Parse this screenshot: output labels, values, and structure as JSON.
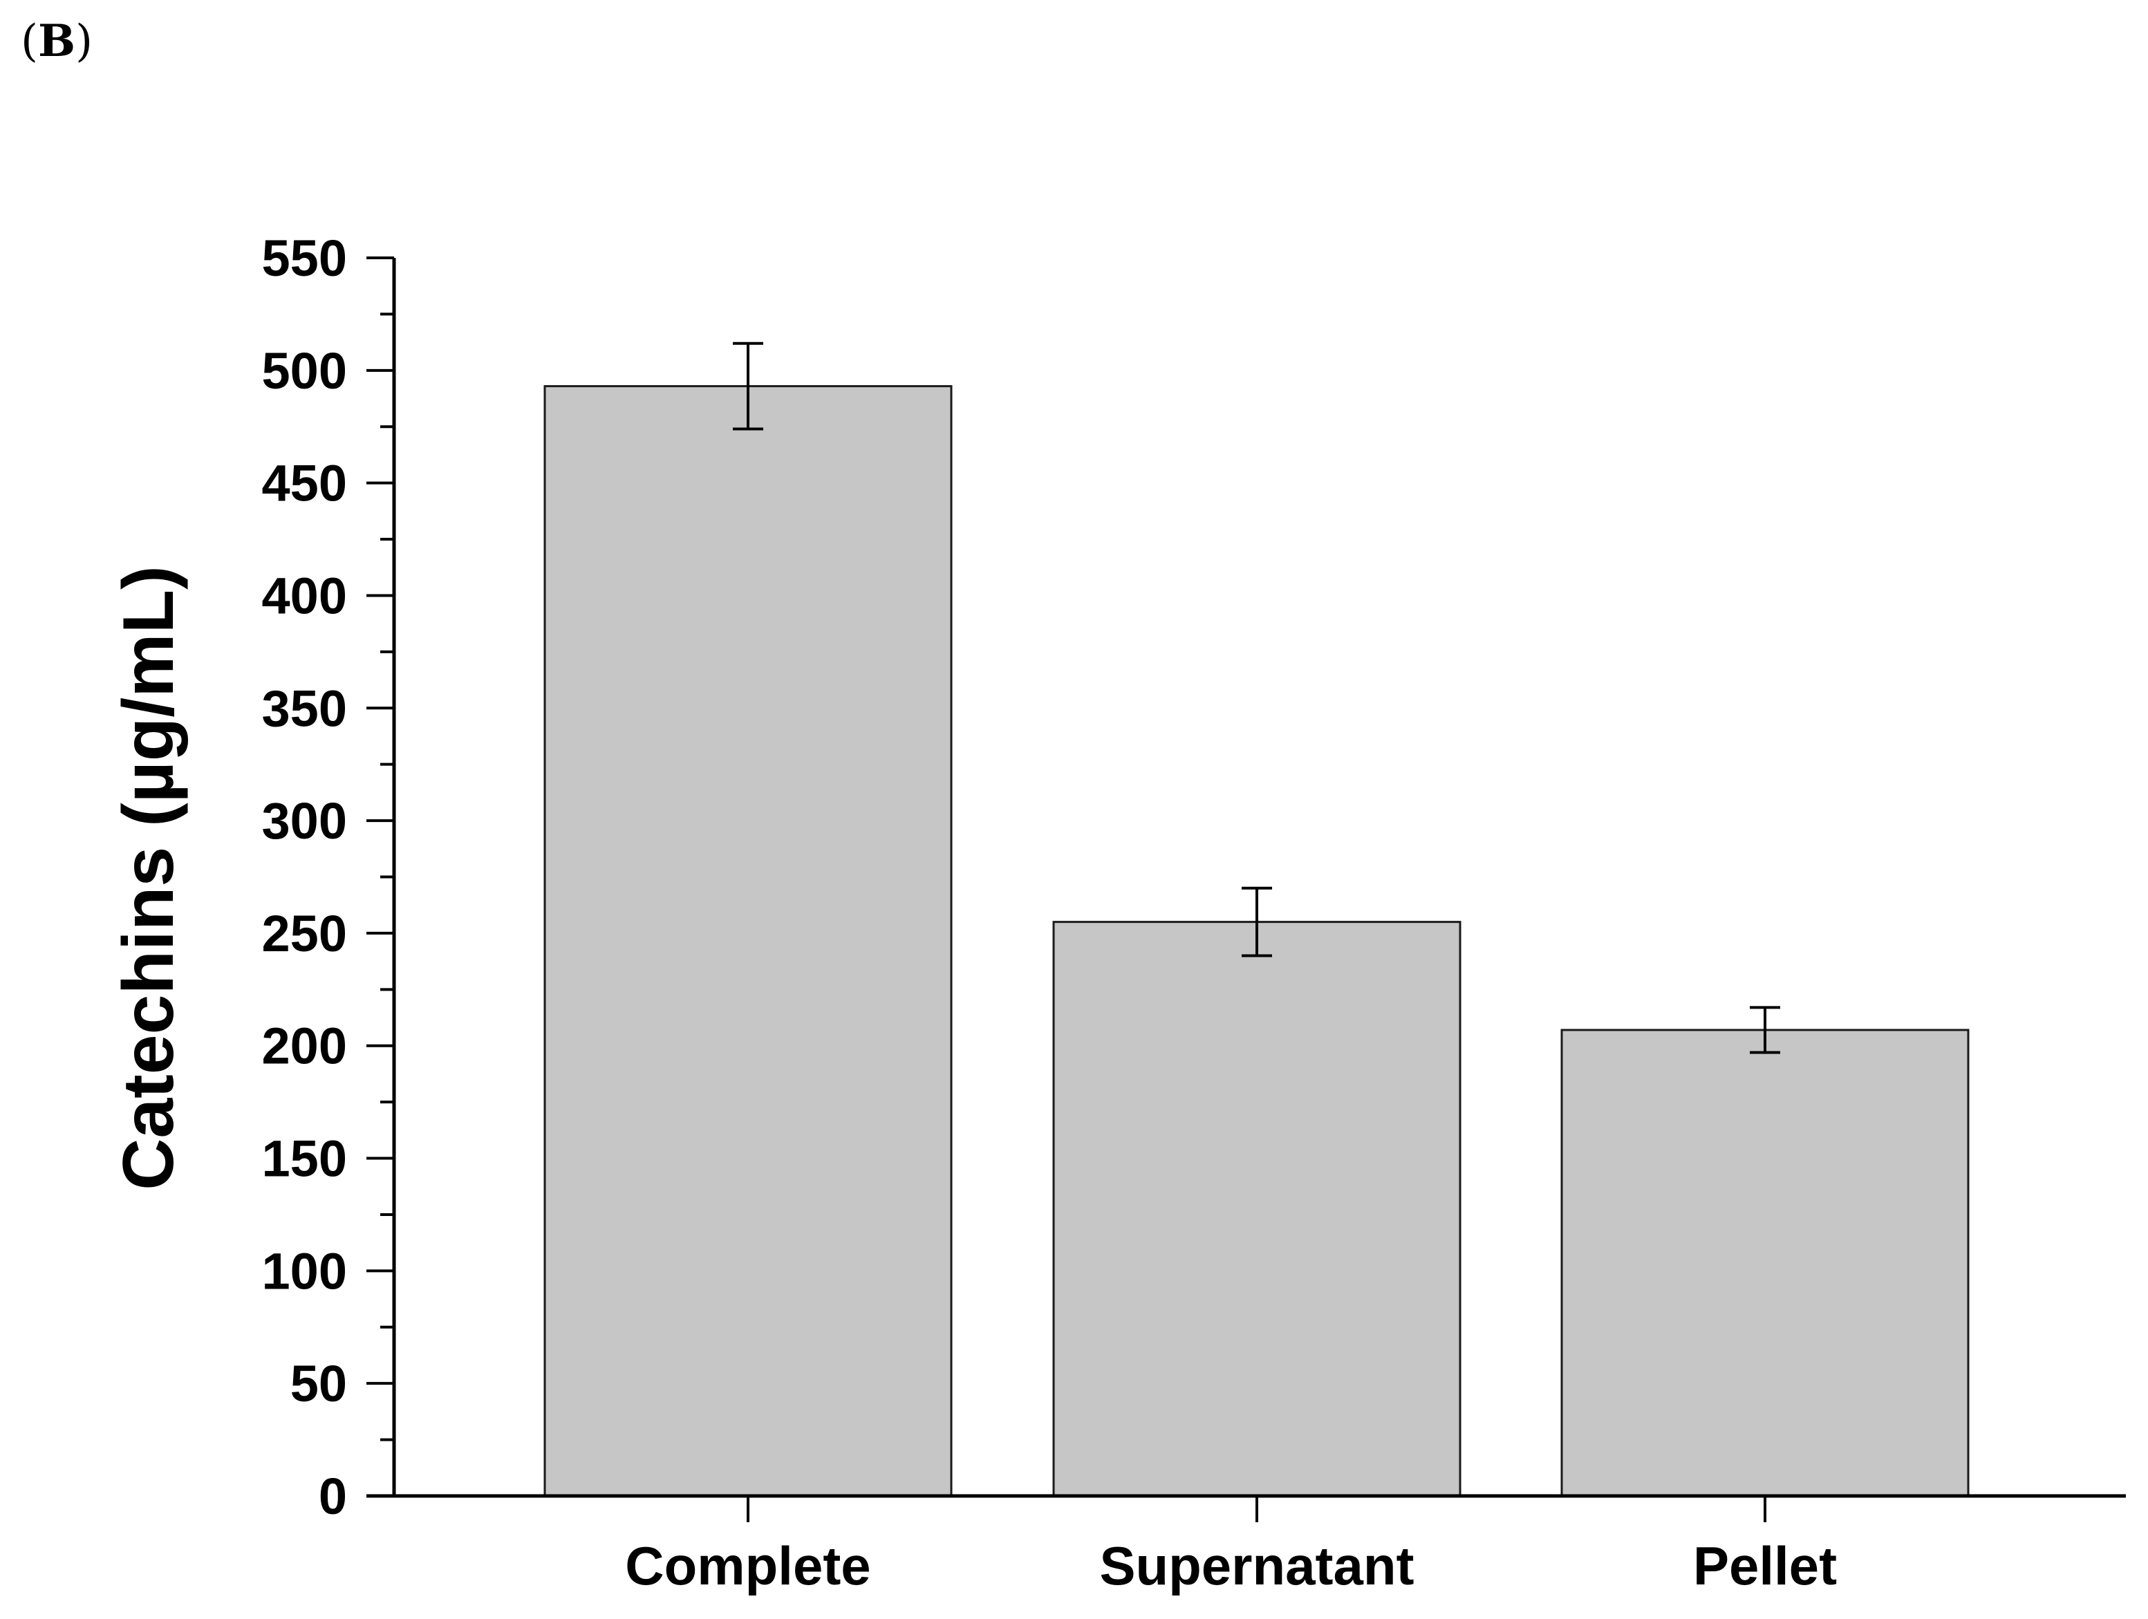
{
  "panel": {
    "open": "(",
    "letter": "B",
    "close": ")"
  },
  "chart_data": {
    "type": "bar",
    "title": "",
    "xlabel": "",
    "ylabel": "Catechins (µg/mL)",
    "categories": [
      "Complete",
      "Supernatant",
      "Pellet"
    ],
    "values": [
      493,
      255,
      207
    ],
    "errors": [
      19,
      15,
      10
    ],
    "ylim": [
      0,
      550
    ],
    "yticks": [
      0,
      50,
      100,
      150,
      200,
      250,
      300,
      350,
      400,
      450,
      500,
      550
    ],
    "minor_tick_step": 25,
    "grid": false,
    "legend": "none",
    "colors": {
      "bar_fill": "#c6c6c6",
      "bar_edge": "#1a1a1a",
      "axis": "#000000",
      "error_bar": "#000000"
    }
  }
}
